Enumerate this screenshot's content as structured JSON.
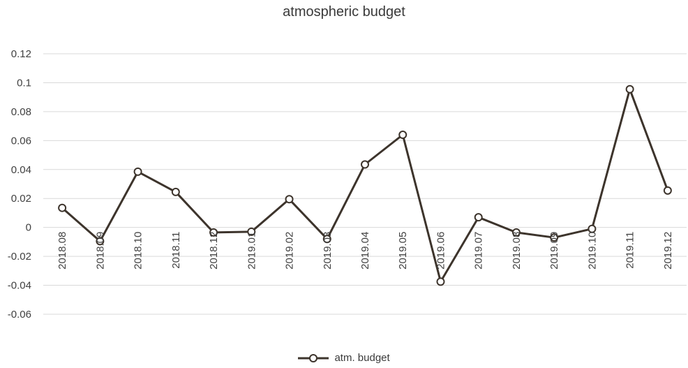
{
  "chart_data": {
    "type": "line",
    "title": "atmospheric budget",
    "xlabel": "",
    "ylabel": "",
    "categories": [
      "2018.08",
      "2018.09",
      "2018.10",
      "2018.11",
      "2018.12",
      "2019.01",
      "2019.02",
      "2019.03",
      "2019.04",
      "2019.05",
      "2019.06",
      "2019.07",
      "2019.08",
      "2019.09",
      "2019.10",
      "2019.11",
      "2019.12"
    ],
    "series": [
      {
        "name": "atm. budget",
        "values": [
          0.0135,
          -0.0095,
          0.0385,
          0.0245,
          -0.0035,
          -0.003,
          0.0195,
          -0.008,
          0.0435,
          0.064,
          -0.0375,
          0.007,
          -0.0035,
          -0.007,
          -0.001,
          0.0955,
          0.0255
        ]
      }
    ],
    "ylim": [
      -0.06,
      0.12
    ],
    "yticks": [
      "-0.06",
      "-0.04",
      "-0.02",
      "0",
      "0.02",
      "0.04",
      "0.06",
      "0.08",
      "0.1",
      "0.12"
    ],
    "grid": true,
    "legend_position": "bottom",
    "colors": {
      "line": "#3d342c",
      "grid": "#d9d9d9"
    }
  }
}
